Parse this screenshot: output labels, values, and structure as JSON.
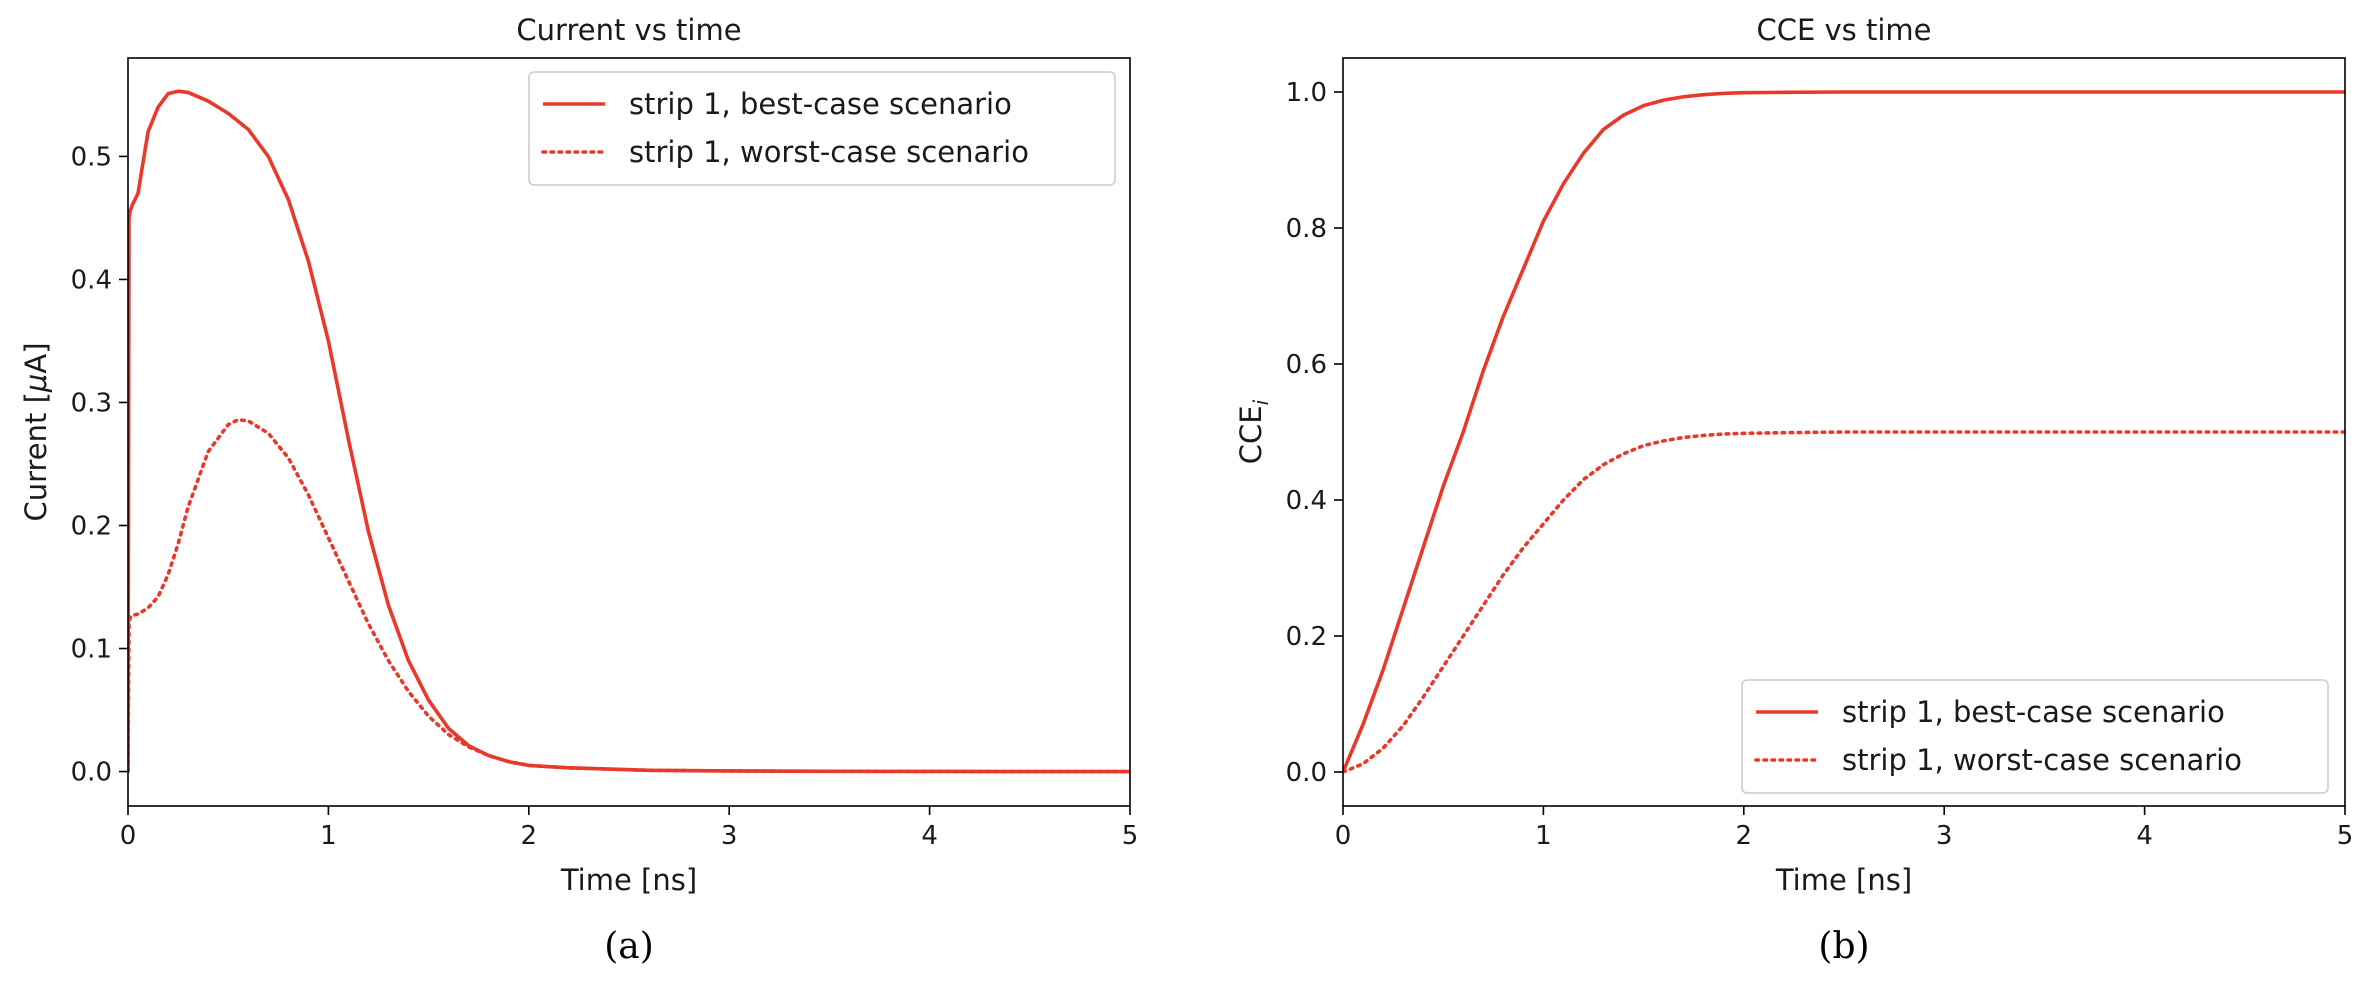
{
  "chart_data": [
    {
      "type": "line",
      "title": "Current vs time",
      "xlabel": "Time [ns]",
      "ylabel_prefix": "Current [",
      "ylabel_greek": "μ",
      "ylabel_suffix": "A]",
      "xlim": [
        0,
        5
      ],
      "ylim": [
        -0.028,
        0.58
      ],
      "xticks": [
        0,
        1,
        2,
        3,
        4,
        5
      ],
      "xtick_labels": [
        "0",
        "1",
        "2",
        "3",
        "4",
        "5"
      ],
      "yticks": [
        0.0,
        0.1,
        0.2,
        0.3,
        0.4,
        0.5
      ],
      "ytick_labels": [
        "0.0",
        "0.1",
        "0.2",
        "0.3",
        "0.4",
        "0.5"
      ],
      "grid": false,
      "legend_position": "top-right",
      "caption": "(a)",
      "color": "#e8392b",
      "series": [
        {
          "name": "strip 1, best-case scenario",
          "style": "solid",
          "x": [
            0,
            0.005,
            0.01,
            0.02,
            0.05,
            0.1,
            0.15,
            0.2,
            0.25,
            0.3,
            0.4,
            0.5,
            0.6,
            0.7,
            0.8,
            0.9,
            1.0,
            1.1,
            1.2,
            1.3,
            1.4,
            1.5,
            1.6,
            1.7,
            1.8,
            1.9,
            2.0,
            2.2,
            2.4,
            2.6,
            3.0,
            3.5,
            4.0,
            4.5,
            5.0
          ],
          "y": [
            0,
            0.45,
            0.455,
            0.46,
            0.47,
            0.52,
            0.54,
            0.551,
            0.553,
            0.552,
            0.545,
            0.535,
            0.522,
            0.5,
            0.465,
            0.415,
            0.35,
            0.27,
            0.195,
            0.135,
            0.09,
            0.058,
            0.035,
            0.021,
            0.013,
            0.008,
            0.005,
            0.003,
            0.002,
            0.001,
            0.0005,
            0.0002,
            0.0001,
            0,
            0
          ]
        },
        {
          "name": "strip 1, worst-case scenario",
          "style": "dotted",
          "x": [
            0,
            0.005,
            0.01,
            0.02,
            0.05,
            0.1,
            0.15,
            0.2,
            0.25,
            0.3,
            0.4,
            0.5,
            0.55,
            0.6,
            0.7,
            0.8,
            0.9,
            1.0,
            1.1,
            1.2,
            1.3,
            1.4,
            1.5,
            1.6,
            1.7,
            1.8,
            1.9,
            2.0,
            2.2,
            2.4,
            2.6,
            3.0,
            3.5,
            4.0,
            4.5,
            5.0
          ],
          "y": [
            0,
            0.12,
            0.125,
            0.127,
            0.128,
            0.133,
            0.142,
            0.16,
            0.185,
            0.215,
            0.26,
            0.282,
            0.286,
            0.285,
            0.275,
            0.255,
            0.225,
            0.19,
            0.155,
            0.12,
            0.09,
            0.065,
            0.045,
            0.03,
            0.02,
            0.013,
            0.008,
            0.005,
            0.003,
            0.002,
            0.001,
            0.0005,
            0.0002,
            0.0001,
            0,
            0
          ]
        }
      ]
    },
    {
      "type": "line",
      "title": "CCE vs time",
      "xlabel": "Time [ns]",
      "ylabel_main": "CCE",
      "ylabel_sub": "i",
      "xlim": [
        0,
        5
      ],
      "ylim": [
        -0.05,
        1.05
      ],
      "xticks": [
        0,
        1,
        2,
        3,
        4,
        5
      ],
      "xtick_labels": [
        "0",
        "1",
        "2",
        "3",
        "4",
        "5"
      ],
      "yticks": [
        0.0,
        0.2,
        0.4,
        0.6,
        0.8,
        1.0
      ],
      "ytick_labels": [
        "0.0",
        "0.2",
        "0.4",
        "0.6",
        "0.8",
        "1.0"
      ],
      "grid": false,
      "legend_position": "bottom-right",
      "caption": "(b)",
      "color": "#e8392b",
      "series": [
        {
          "name": "strip 1, best-case scenario",
          "style": "solid",
          "x": [
            0,
            0.1,
            0.2,
            0.3,
            0.4,
            0.5,
            0.6,
            0.7,
            0.8,
            0.9,
            1.0,
            1.1,
            1.2,
            1.3,
            1.4,
            1.5,
            1.6,
            1.7,
            1.8,
            1.9,
            2.0,
            2.2,
            2.5,
            3.0,
            3.5,
            4.0,
            4.5,
            5.0
          ],
          "y": [
            0,
            0.07,
            0.15,
            0.24,
            0.33,
            0.42,
            0.5,
            0.59,
            0.67,
            0.74,
            0.81,
            0.865,
            0.91,
            0.945,
            0.966,
            0.98,
            0.988,
            0.993,
            0.996,
            0.998,
            0.999,
            0.9995,
            1.0,
            1.0,
            1.0,
            1.0,
            1.0,
            1.0
          ]
        },
        {
          "name": "strip 1, worst-case scenario",
          "style": "dotted",
          "x": [
            0,
            0.1,
            0.2,
            0.3,
            0.4,
            0.5,
            0.6,
            0.7,
            0.8,
            0.9,
            1.0,
            1.1,
            1.2,
            1.3,
            1.4,
            1.5,
            1.6,
            1.7,
            1.8,
            1.9,
            2.0,
            2.2,
            2.5,
            3.0,
            3.5,
            4.0,
            4.5,
            5.0
          ],
          "y": [
            0,
            0.012,
            0.035,
            0.068,
            0.11,
            0.155,
            0.2,
            0.245,
            0.29,
            0.33,
            0.365,
            0.4,
            0.43,
            0.452,
            0.468,
            0.48,
            0.487,
            0.492,
            0.495,
            0.497,
            0.498,
            0.499,
            0.5,
            0.5,
            0.5,
            0.5,
            0.5,
            0.5
          ]
        }
      ]
    }
  ]
}
